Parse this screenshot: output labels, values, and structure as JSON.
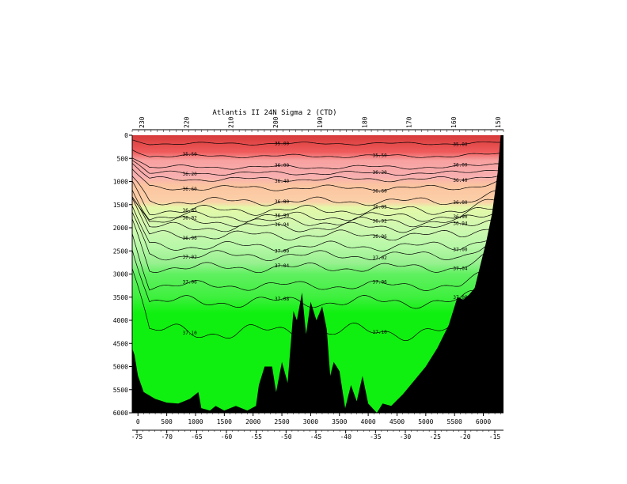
{
  "chart_data": {
    "type": "heatmap",
    "title": "Atlantis II 24N Sigma 2 (CTD)",
    "xlabel": "",
    "ylabel": "",
    "x_range": [
      -100,
      6350
    ],
    "y_range": [
      0,
      6000
    ],
    "x_ticks": [
      "0",
      "500",
      "1000",
      "1500",
      "2000",
      "2500",
      "3000",
      "3500",
      "4000",
      "4500",
      "5000",
      "5500",
      "6000"
    ],
    "y_ticks": [
      "0",
      "500",
      "1000",
      "1500",
      "2000",
      "2500",
      "3000",
      "3500",
      "4000",
      "4500",
      "5000",
      "5500",
      "6000"
    ],
    "lon_ticks": [
      "-75",
      "-70",
      "-65",
      "-60",
      "-55",
      "-50",
      "-45",
      "-40",
      "-35",
      "-30",
      "-25",
      "-20",
      "-15"
    ],
    "station_ticks": [
      "230",
      "220",
      "210",
      "200",
      "190",
      "180",
      "170",
      "160",
      "150"
    ],
    "colors": {
      "top": "#ec4a4a",
      "light_red": "#f8a8a8",
      "peach": "#fbc8a0",
      "yellow_green": "#e0f8a0",
      "light_green": "#c8f8b0",
      "mid_green": "#a0f090",
      "green": "#60f060",
      "deep_green": "#10f010",
      "bottom": "#000000"
    },
    "contours": [
      {
        "label": "35.00",
        "depth": 180,
        "amp": 20
      },
      {
        "label": "35.50",
        "depth": 450,
        "amp": 25
      },
      {
        "label": "36.00",
        "depth": 690,
        "amp": 30
      },
      {
        "label": "36.20",
        "depth": 820,
        "amp": 30
      },
      {
        "label": "36.40",
        "depth": 950,
        "amp": 35
      },
      {
        "label": "36.60",
        "depth": 1140,
        "amp": 40
      },
      {
        "label": "36.80",
        "depth": 1430,
        "amp": 60
      },
      {
        "label": "36.85",
        "depth": 1620,
        "amp": 70
      },
      {
        "label": "36.90",
        "depth": 1760,
        "amp": 70
      },
      {
        "label": "36.92",
        "depth": 1870,
        "amp": 70
      },
      {
        "label": "36.94",
        "depth": 1990,
        "amp": 70
      },
      {
        "label": "36.96",
        "depth": 2160,
        "amp": 70
      },
      {
        "label": "37.00",
        "depth": 2400,
        "amp": 70
      },
      {
        "label": "37.02",
        "depth": 2600,
        "amp": 70
      },
      {
        "label": "37.04",
        "depth": 2860,
        "amp": 70
      },
      {
        "label": "37.06",
        "depth": 3250,
        "amp": 70
      },
      {
        "label": "37.08",
        "depth": 3600,
        "amp": 90
      },
      {
        "label": "37.10",
        "depth": 4250,
        "amp": 120
      }
    ],
    "bottom_profile": [
      [
        -100,
        4600
      ],
      [
        -60,
        4750
      ],
      [
        0,
        5200
      ],
      [
        100,
        5550
      ],
      [
        300,
        5700
      ],
      [
        500,
        5780
      ],
      [
        700,
        5800
      ],
      [
        900,
        5700
      ],
      [
        1050,
        5550
      ],
      [
        1100,
        5900
      ],
      [
        1250,
        5950
      ],
      [
        1350,
        5850
      ],
      [
        1500,
        5950
      ],
      [
        1700,
        5850
      ],
      [
        1900,
        5950
      ],
      [
        2050,
        5850
      ],
      [
        2100,
        5400
      ],
      [
        2200,
        5000
      ],
      [
        2330,
        5000
      ],
      [
        2400,
        5550
      ],
      [
        2500,
        4900
      ],
      [
        2600,
        5350
      ],
      [
        2700,
        3800
      ],
      [
        2760,
        4000
      ],
      [
        2850,
        3400
      ],
      [
        2920,
        4300
      ],
      [
        3000,
        3600
      ],
      [
        3100,
        4000
      ],
      [
        3200,
        3700
      ],
      [
        3280,
        4200
      ],
      [
        3340,
        5200
      ],
      [
        3400,
        4900
      ],
      [
        3500,
        5100
      ],
      [
        3600,
        5900
      ],
      [
        3700,
        5400
      ],
      [
        3800,
        5750
      ],
      [
        3900,
        5200
      ],
      [
        4000,
        5800
      ],
      [
        4150,
        6000
      ],
      [
        4250,
        5800
      ],
      [
        4400,
        5850
      ],
      [
        4600,
        5600
      ],
      [
        4800,
        5300
      ],
      [
        5000,
        5000
      ],
      [
        5200,
        4600
      ],
      [
        5400,
        4100
      ],
      [
        5550,
        3500
      ],
      [
        5650,
        3550
      ],
      [
        5750,
        3450
      ],
      [
        5850,
        3300
      ],
      [
        5950,
        2800
      ],
      [
        6050,
        2300
      ],
      [
        6150,
        1700
      ],
      [
        6250,
        800
      ],
      [
        6300,
        0
      ]
    ]
  }
}
